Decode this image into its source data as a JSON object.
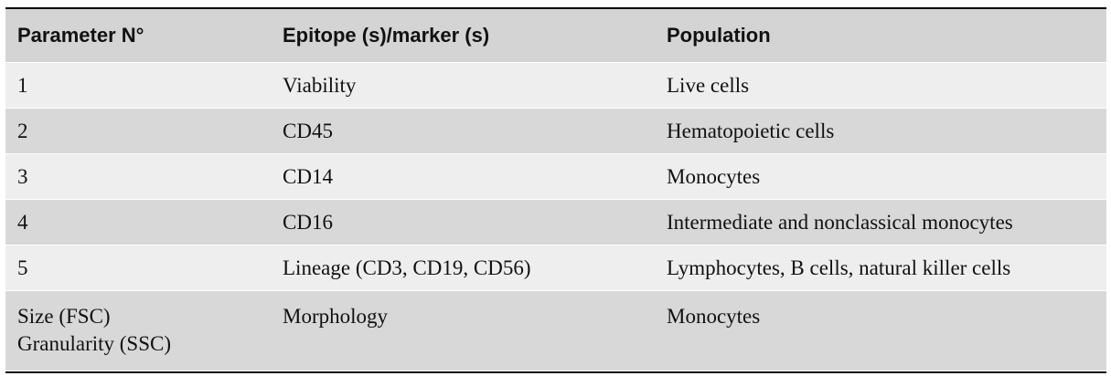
{
  "table": {
    "headers": [
      "Parameter N°",
      "Epitope (s)/marker (s)",
      "Population"
    ],
    "rows": [
      {
        "parameter": [
          "1"
        ],
        "marker": "Viability",
        "population": "Live cells"
      },
      {
        "parameter": [
          "2"
        ],
        "marker": "CD45",
        "population": "Hematopoietic cells"
      },
      {
        "parameter": [
          "3"
        ],
        "marker": "CD14",
        "population": "Monocytes"
      },
      {
        "parameter": [
          "4"
        ],
        "marker": "CD16",
        "population": "Intermediate and nonclassical monocytes"
      },
      {
        "parameter": [
          "5"
        ],
        "marker": "Lineage (CD3, CD19, CD56)",
        "population": "Lymphocytes, B cells, natural killer cells"
      },
      {
        "parameter": [
          "Size (FSC)",
          "Granularity (SSC)"
        ],
        "marker": "Morphology",
        "population": "Monocytes"
      }
    ]
  },
  "colors": {
    "header_bg": "#d4d4d4",
    "row_light": "#eeeeee",
    "row_dark": "#d8d8d8",
    "rule": "#000000"
  }
}
